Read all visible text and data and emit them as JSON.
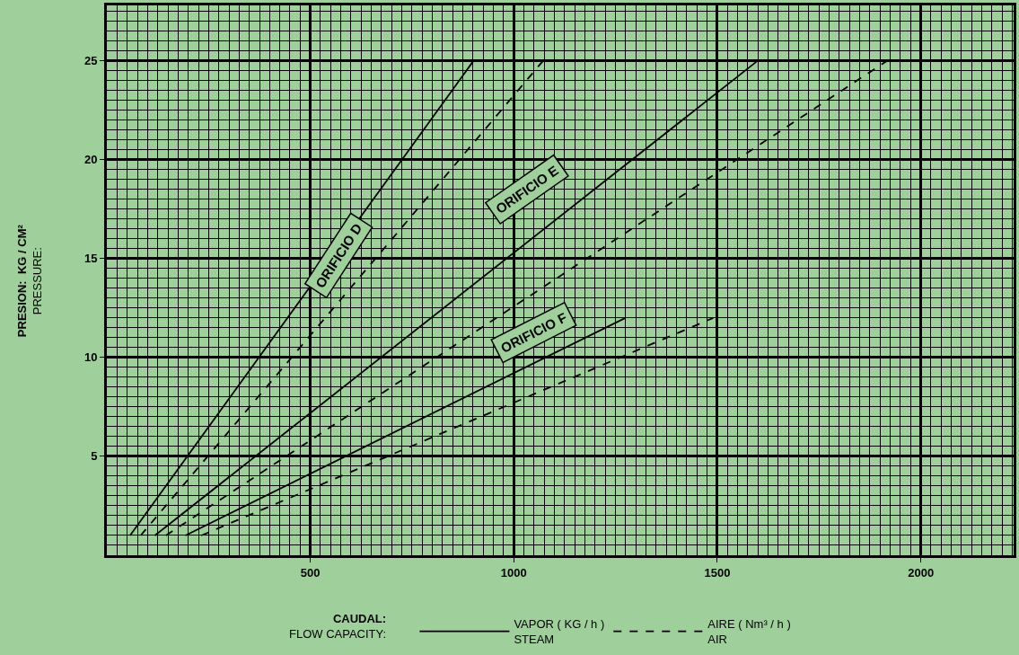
{
  "chart_data": {
    "type": "line",
    "xlabel": "CAUDAL:\nFLOW CAPACITY:",
    "ylabel": "PRESION:  KG / CM²\nPRESSURE:",
    "xlim": [
      0,
      2228
    ],
    "xticks": [
      500,
      1000,
      1500,
      2000
    ],
    "ylim": [
      0,
      27.8
    ],
    "yticks": [
      5,
      10,
      15,
      20,
      25
    ],
    "grid": true,
    "legend": "bottom",
    "marker": "none",
    "series": [
      {
        "name": "VAPOR ( KG / h )\nSTEAM",
        "color": "#000000",
        "line_style": "solid",
        "x": [
          57,
          901
        ],
        "values": [
          1,
          25
        ]
      },
      {
        "name": "AIRE ( Nm³ / h )\nAIR",
        "color": "#000000",
        "line_style": "dashed",
        "x": [
          83,
          1072
        ],
        "values": [
          1,
          25
        ]
      },
      {
        "color": "#000000",
        "line_style": "solid",
        "x": [
          118,
          1599
        ],
        "values": [
          1,
          25
        ]
      },
      {
        "color": "#000000",
        "line_style": "dashed",
        "x": [
          145,
          1917
        ],
        "values": [
          1,
          25
        ]
      },
      {
        "color": "#000000",
        "line_style": "solid",
        "x": [
          193,
          1274
        ],
        "values": [
          1,
          12
        ]
      },
      {
        "color": "#000000",
        "line_style": "dashed",
        "x": [
          232,
          1490
        ],
        "values": [
          1,
          12
        ]
      }
    ],
    "annotations": [
      "ORIFICIO D",
      "ORIFICIO E",
      "ORIFICIO F"
    ]
  }
}
